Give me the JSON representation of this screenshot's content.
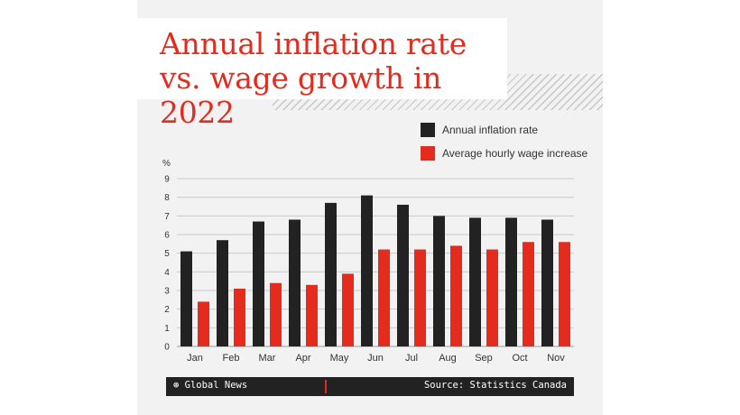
{
  "chart_data": {
    "type": "bar",
    "title": "Annual inflation rate\nvs. wage growth in 2022",
    "ylabel": "%",
    "ylim": [
      0,
      9
    ],
    "yticks": [
      0,
      1,
      2,
      3,
      4,
      5,
      6,
      7,
      8,
      9
    ],
    "grid": true,
    "legend_position": "top-right",
    "categories": [
      "Jan",
      "Feb",
      "Mar",
      "Apr",
      "May",
      "Jun",
      "Jul",
      "Aug",
      "Sep",
      "Oct",
      "Nov"
    ],
    "series": [
      {
        "name": "Annual inflation rate",
        "color": "#222222",
        "values": [
          5.1,
          5.7,
          6.7,
          6.8,
          7.7,
          8.1,
          7.6,
          7.0,
          6.9,
          6.9,
          6.8
        ]
      },
      {
        "name": "Average hourly wage increase",
        "color": "#e52b1e",
        "values": [
          2.4,
          3.1,
          3.4,
          3.3,
          3.9,
          5.2,
          5.2,
          5.4,
          5.2,
          5.6,
          5.6
        ]
      }
    ]
  },
  "footer": {
    "logo": "⊛ Global News",
    "source": "Source: Statistics Canada"
  }
}
